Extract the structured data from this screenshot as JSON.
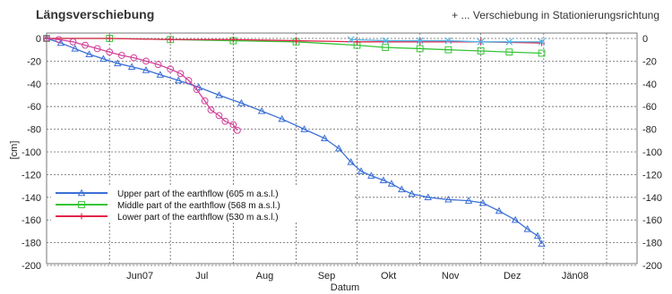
{
  "header": {
    "title": "Längsverschiebung",
    "note": "+ ... Verschiebung in Stationierungsrichtung"
  },
  "chart_data": {
    "type": "line",
    "title": "Längsverschiebung",
    "xlabel": "Datum",
    "ylabel": "[cm]",
    "ylim": [
      -200,
      0
    ],
    "yticks": [
      0,
      -20,
      -40,
      -60,
      -80,
      -100,
      -120,
      -140,
      -160,
      -180,
      -200
    ],
    "x_tick_labels": [
      "Jun07",
      "Jul",
      "Aug",
      "Sep",
      "Okt",
      "Nov",
      "Dez",
      "Jän08"
    ],
    "grid": true,
    "legend_position": "lower-left",
    "series": [
      {
        "name": "Upper part of the earthflow (605 m a.s.l.)",
        "color": "#3b6fd6",
        "marker": "triangle",
        "points": [
          [
            "2007-05-01",
            0
          ],
          [
            "2007-05-08",
            -4
          ],
          [
            "2007-05-15",
            -9
          ],
          [
            "2007-05-22",
            -14
          ],
          [
            "2007-05-29",
            -18
          ],
          [
            "2007-06-05",
            -22
          ],
          [
            "2007-06-12",
            -25
          ],
          [
            "2007-06-19",
            -28
          ],
          [
            "2007-06-26",
            -32
          ],
          [
            "2007-07-05",
            -37
          ],
          [
            "2007-07-15",
            -43
          ],
          [
            "2007-07-25",
            -50
          ],
          [
            "2007-08-05",
            -57
          ],
          [
            "2007-08-15",
            -64
          ],
          [
            "2007-08-25",
            -71
          ],
          [
            "2007-09-05",
            -80
          ],
          [
            "2007-09-15",
            -88
          ],
          [
            "2007-09-22",
            -97
          ],
          [
            "2007-09-28",
            -109
          ],
          [
            "2007-10-03",
            -117
          ],
          [
            "2007-10-08",
            -121
          ],
          [
            "2007-10-14",
            -125
          ],
          [
            "2007-10-18",
            -128
          ],
          [
            "2007-10-23",
            -133
          ],
          [
            "2007-10-28",
            -137
          ],
          [
            "2007-11-05",
            -140
          ],
          [
            "2007-11-15",
            -142
          ],
          [
            "2007-11-25",
            -143
          ],
          [
            "2007-12-02",
            -145
          ],
          [
            "2007-12-10",
            -152
          ],
          [
            "2007-12-18",
            -160
          ],
          [
            "2007-12-24",
            -168
          ],
          [
            "2007-12-29",
            -174
          ],
          [
            "2007-12-31",
            -181
          ]
        ]
      },
      {
        "name": "Middle part of the earthflow (568 m a.s.l.)",
        "color": "#35c435",
        "marker": "square",
        "points": [
          [
            "2007-05-01",
            0
          ],
          [
            "2007-06-01",
            0
          ],
          [
            "2007-07-01",
            -1
          ],
          [
            "2007-08-01",
            -2
          ],
          [
            "2007-09-01",
            -3
          ],
          [
            "2007-10-01",
            -6
          ],
          [
            "2007-10-15",
            -8
          ],
          [
            "2007-11-01",
            -9
          ],
          [
            "2007-11-15",
            -10
          ],
          [
            "2007-12-01",
            -11
          ],
          [
            "2007-12-15",
            -12
          ],
          [
            "2007-12-31",
            -13
          ]
        ]
      },
      {
        "name": "Lower part of the earthflow (530 m a.s.l.)",
        "color": "#e2244b",
        "marker": "plus",
        "points": [
          [
            "2007-05-01",
            0
          ],
          [
            "2007-06-01",
            0
          ],
          [
            "2007-07-01",
            -1
          ],
          [
            "2007-08-01",
            -1
          ],
          [
            "2007-09-01",
            -2
          ],
          [
            "2007-10-01",
            -3
          ],
          [
            "2007-11-01",
            -3
          ],
          [
            "2007-12-01",
            -3
          ],
          [
            "2007-12-31",
            -4
          ]
        ]
      },
      {
        "name": "",
        "color": "#d2429a",
        "marker": "circle",
        "points": [
          [
            "2007-05-01",
            0
          ],
          [
            "2007-05-07",
            -1
          ],
          [
            "2007-05-14",
            -3
          ],
          [
            "2007-05-20",
            -6
          ],
          [
            "2007-05-26",
            -9
          ],
          [
            "2007-06-01",
            -12
          ],
          [
            "2007-06-07",
            -15
          ],
          [
            "2007-06-13",
            -17
          ],
          [
            "2007-06-19",
            -20
          ],
          [
            "2007-06-25",
            -23
          ],
          [
            "2007-07-01",
            -27
          ],
          [
            "2007-07-06",
            -31
          ],
          [
            "2007-07-10",
            -37
          ],
          [
            "2007-07-14",
            -45
          ],
          [
            "2007-07-18",
            -55
          ],
          [
            "2007-07-21",
            -63
          ],
          [
            "2007-07-25",
            -68
          ],
          [
            "2007-07-28",
            -73
          ],
          [
            "2007-08-01",
            -76
          ],
          [
            "2007-08-03",
            -81
          ]
        ]
      },
      {
        "name": "",
        "color": "#4fb6e8",
        "marker": "cross",
        "points": [
          [
            "2007-09-28",
            -1
          ],
          [
            "2007-10-15",
            -2
          ],
          [
            "2007-11-01",
            -2
          ],
          [
            "2007-11-15",
            -2
          ],
          [
            "2007-12-01",
            -3
          ],
          [
            "2007-12-15",
            -3
          ],
          [
            "2007-12-31",
            -3
          ]
        ]
      }
    ]
  }
}
